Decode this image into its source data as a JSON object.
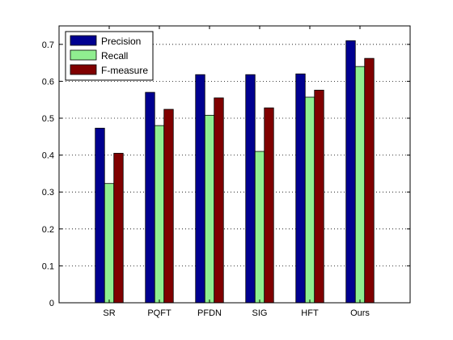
{
  "chart_data": {
    "type": "bar",
    "title": "",
    "xlabel": "",
    "ylabel": "",
    "categories": [
      "SR",
      "PQFT",
      "PFDN",
      "SIG",
      "HFT",
      "Ours"
    ],
    "ylim": [
      0,
      0.75
    ],
    "yticks": [
      0,
      0.1,
      0.2,
      0.3,
      0.4,
      0.5,
      0.6,
      0.7
    ],
    "ytick_labels": [
      "0",
      "0.1",
      "0.2",
      "0.3",
      "0.4",
      "0.5",
      "0.6",
      "0.7"
    ],
    "grid": "horizontal-dotted",
    "legend_position": "top-left",
    "series": [
      {
        "name": "Precision",
        "color": "#000090",
        "values": [
          0.473,
          0.57,
          0.618,
          0.618,
          0.62,
          0.71
        ]
      },
      {
        "name": "Recall",
        "color": "#90ee90",
        "values": [
          0.323,
          0.48,
          0.508,
          0.41,
          0.557,
          0.64
        ]
      },
      {
        "name": "F-measure",
        "color": "#800000",
        "values": [
          0.405,
          0.524,
          0.555,
          0.528,
          0.576,
          0.662
        ]
      }
    ]
  }
}
